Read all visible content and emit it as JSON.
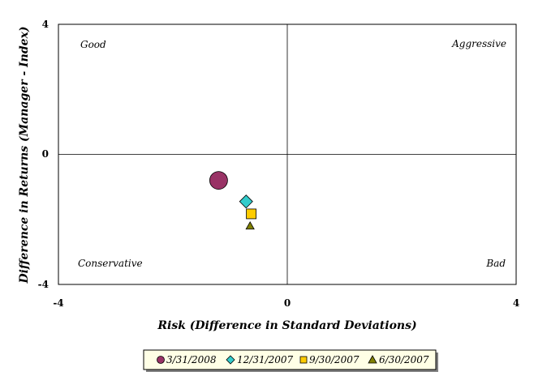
{
  "chart_data": {
    "type": "scatter",
    "xlabel": "Risk (Difference in Standard Deviations)",
    "ylabel": "Difference in Returns (Manager - Index)",
    "xlim": [
      -4,
      4
    ],
    "ylim": [
      -4,
      4
    ],
    "x_ticks": [
      "-4",
      "0",
      "4"
    ],
    "y_ticks": [
      "4",
      "0",
      "-4"
    ],
    "grid": false,
    "legend_position": "bottom",
    "quadrant_labels": {
      "top_left": "Good",
      "top_right": "Aggressive",
      "bottom_left": "Conservative",
      "bottom_right": "Bad"
    },
    "series": [
      {
        "name": "3/31/2008",
        "marker": "circle",
        "color": "#993366",
        "x": -1.2,
        "y": -0.8
      },
      {
        "name": "12/31/2007",
        "marker": "diamond",
        "color": "#33CCCC",
        "x": -0.72,
        "y": -1.45
      },
      {
        "name": "9/30/2007",
        "marker": "square",
        "color": "#FFCC00",
        "x": -0.63,
        "y": -1.83
      },
      {
        "name": "6/30/2007",
        "marker": "triangle",
        "color": "#808000",
        "x": -0.65,
        "y": -2.2
      }
    ]
  }
}
